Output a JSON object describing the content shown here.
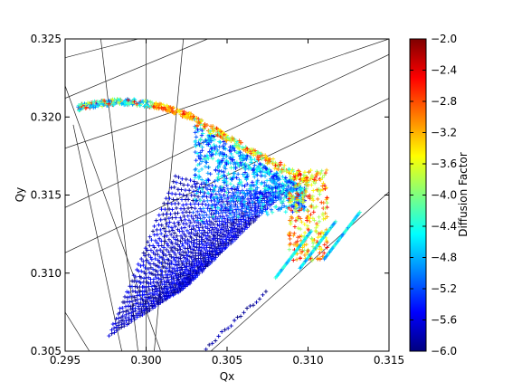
{
  "chart_data": {
    "type": "scatter",
    "xlabel": "Qx",
    "ylabel": "Qy",
    "xlim": [
      0.295,
      0.315
    ],
    "ylim": [
      0.305,
      0.325
    ],
    "x_ticks": [
      "0.295",
      "0.300",
      "0.305",
      "0.310",
      "0.315"
    ],
    "y_ticks": [
      "0.305",
      "0.310",
      "0.315",
      "0.320",
      "0.325"
    ],
    "colorbar": {
      "label": "Diffusion Factor",
      "range": [
        -6.0,
        -2.0
      ],
      "ticks": [
        "−2.0",
        "−2.4",
        "−2.8",
        "−3.2",
        "−3.6",
        "−4.0",
        "−4.4",
        "−4.8",
        "−5.2",
        "−5.6",
        "−6.0"
      ],
      "colormap": "jet",
      "colors": [
        "#00007f",
        "#0000ff",
        "#007fff",
        "#00ffff",
        "#7fff7f",
        "#ffff00",
        "#ff7f00",
        "#ff0000",
        "#7f0000"
      ]
    },
    "resonance_lines": [
      {
        "x1": 0.295,
        "y1": 0.3238,
        "x2": 0.2995,
        "y2": 0.325
      },
      {
        "x1": 0.295,
        "y1": 0.3212,
        "x2": 0.3038,
        "y2": 0.325
      },
      {
        "x1": 0.295,
        "y1": 0.318,
        "x2": 0.315,
        "y2": 0.325
      },
      {
        "x1": 0.295,
        "y1": 0.3142,
        "x2": 0.315,
        "y2": 0.324
      },
      {
        "x1": 0.295,
        "y1": 0.3113,
        "x2": 0.315,
        "y2": 0.3212
      },
      {
        "x1": 0.304,
        "y1": 0.305,
        "x2": 0.315,
        "y2": 0.3152
      },
      {
        "x1": 0.295,
        "y1": 0.322,
        "x2": 0.3009,
        "y2": 0.305
      },
      {
        "x1": 0.2955,
        "y1": 0.3195,
        "x2": 0.2985,
        "y2": 0.305
      },
      {
        "x1": 0.2972,
        "y1": 0.325,
        "x2": 0.2995,
        "y2": 0.305
      },
      {
        "x1": 0.3,
        "y1": 0.325,
        "x2": 0.3,
        "y2": 0.305
      },
      {
        "x1": 0.3023,
        "y1": 0.325,
        "x2": 0.3005,
        "y2": 0.305
      },
      {
        "x1": 0.295,
        "y1": 0.3075,
        "x2": 0.2965,
        "y2": 0.305
      }
    ],
    "series": [
      {
        "marker": "+",
        "point_groups": [
          {
            "region": "wedge-rows",
            "x_range": [
              0.2975,
              0.3085
            ],
            "y_range": [
              0.306,
              0.3195
            ],
            "value_range": [
              -6.0,
              -5.4
            ]
          },
          {
            "region": "wedge-upper-fill",
            "x_range": [
              0.303,
              0.31
            ],
            "y_range": [
              0.3115,
              0.3185
            ],
            "value_range": [
              -5.4,
              -4.2
            ]
          },
          {
            "region": "top-arc",
            "x_range": [
              0.2955,
              0.3035
            ],
            "y_range": [
              0.3195,
              0.3212
            ],
            "value_range": [
              -5.0,
              -2.6
            ]
          },
          {
            "region": "right-edge",
            "x_range": [
              0.3085,
              0.3112
            ],
            "y_range": [
              0.3105,
              0.3165
            ],
            "value_range": [
              -4.4,
              -2.4
            ]
          },
          {
            "region": "lower-stream",
            "x_range": [
              0.3035,
              0.3075
            ],
            "y_range": [
              0.305,
              0.309
            ],
            "value_range": [
              -6.0,
              -5.6
            ]
          }
        ]
      }
    ]
  }
}
